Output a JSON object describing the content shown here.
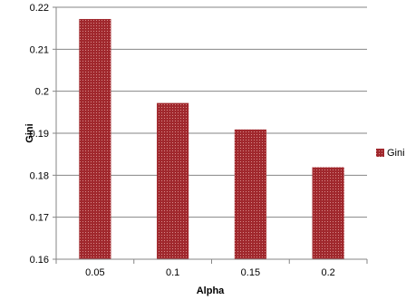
{
  "chart_data": {
    "type": "bar",
    "categories": [
      "0.05",
      "0.1",
      "0.15",
      "0.2"
    ],
    "series": [
      {
        "name": "Gini",
        "values": [
          0.2172,
          0.1972,
          0.1909,
          0.1819
        ]
      }
    ],
    "xlabel": "Alpha",
    "ylabel": "Gini",
    "ylim": [
      0.16,
      0.22
    ],
    "yticks": [
      "0.16",
      "0.17",
      "0.18",
      "0.19",
      "0.2",
      "0.21",
      "0.22"
    ],
    "grid": "horizontal",
    "legend": "right",
    "colors": {
      "bar": "#a0282d",
      "bar_dot": "#d68a8a",
      "grid": "#868686",
      "axis": "#868686"
    }
  }
}
